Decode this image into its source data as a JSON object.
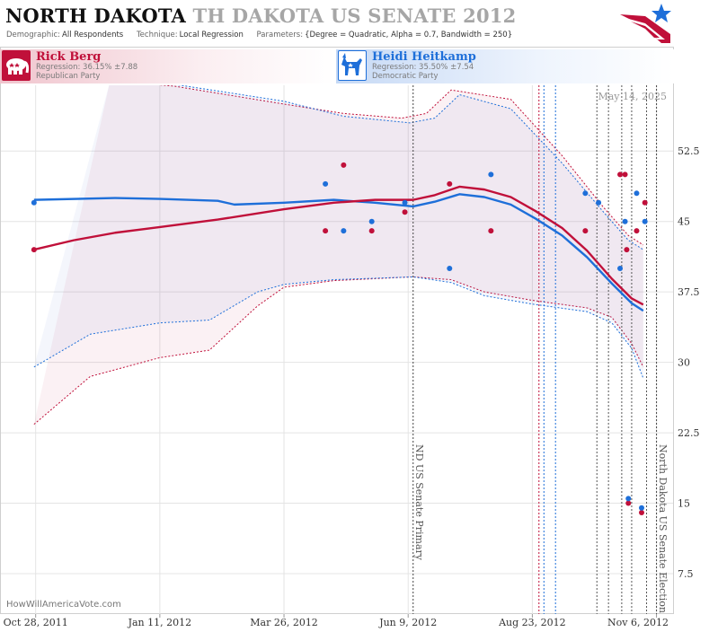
{
  "header": {
    "state": "NORTH DAKOTA",
    "state_faded": "TH DAKOTA",
    "race": "US SENATE 2012",
    "demographic_label": "Demographic:",
    "demographic_value": "All Respondents",
    "technique_label": "Technique:",
    "technique_value": "Local Regression",
    "parameters_label": "Parameters:",
    "parameters_value": "{Degree = Quadratic, Alpha = 0.7, Bandwidth = 250}"
  },
  "candidates": [
    {
      "name": "Rick Berg",
      "regression": "Regression: 36.15% ±7.88",
      "party": "Republican Party",
      "color": "#c0103a",
      "icon": "elephant-icon"
    },
    {
      "name": "Heidi Heitkamp",
      "regression": "Regression: 35.50% ±7.54",
      "party": "Democratic Party",
      "color": "#1e6fd9",
      "icon": "donkey-icon"
    }
  ],
  "watermark": "HowWillAmericaVote.com",
  "chart_data": {
    "type": "scatter",
    "date_label": "May 14, 2025",
    "x_ticks": [
      {
        "label": "Oct 28, 2011",
        "date": "2011-10-28"
      },
      {
        "label": "Jan 11, 2012",
        "date": "2012-01-11"
      },
      {
        "label": "Mar 26, 2012",
        "date": "2012-03-26"
      },
      {
        "label": "Jun 9, 2012",
        "date": "2012-06-09"
      },
      {
        "label": "Aug 23, 2012",
        "date": "2012-08-23"
      },
      {
        "label": "Nov 6, 2012",
        "date": "2012-11-06"
      }
    ],
    "x_range": [
      "2011-10-07",
      "2012-11-16"
    ],
    "y_ticks": [
      "7.5",
      "15",
      "22.5",
      "30",
      "37.5",
      "45",
      "52.5"
    ],
    "ylim": [
      3.2,
      59.5
    ],
    "annotations": [
      {
        "label": "ND US Senate Primary",
        "date": "2012-06-12"
      },
      {
        "label": "North Dakota US Senate Election",
        "date": "2012-11-06"
      }
    ],
    "event_lines": [
      {
        "date": "2012-08-27",
        "color": "#c0103a"
      },
      {
        "date": "2012-08-30",
        "color": "#1e6fd9"
      },
      {
        "date": "2012-09-06",
        "color": "#1e6fd9"
      },
      {
        "date": "2012-10-01",
        "color": "#555555"
      },
      {
        "date": "2012-10-08",
        "color": "#555555"
      },
      {
        "date": "2012-10-16",
        "color": "#555555"
      },
      {
        "date": "2012-10-22",
        "color": "#555555"
      },
      {
        "date": "2012-10-31",
        "color": "#555555"
      }
    ],
    "series": [
      {
        "name": "Rick Berg",
        "color": "#c0103a",
        "points": [
          {
            "date": "2011-10-27",
            "y": 42
          },
          {
            "date": "2012-04-20",
            "y": 44
          },
          {
            "date": "2012-05-01",
            "y": 51
          },
          {
            "date": "2012-05-18",
            "y": 44
          },
          {
            "date": "2012-06-07",
            "y": 46
          },
          {
            "date": "2012-07-04",
            "y": 49
          },
          {
            "date": "2012-07-29",
            "y": 44
          },
          {
            "date": "2012-09-24",
            "y": 44
          },
          {
            "date": "2012-10-15",
            "y": 50
          },
          {
            "date": "2012-10-18",
            "y": 50
          },
          {
            "date": "2012-10-19",
            "y": 42
          },
          {
            "date": "2012-10-25",
            "y": 44
          },
          {
            "date": "2012-10-30",
            "y": 47
          },
          {
            "date": "2012-10-20",
            "y": 15
          },
          {
            "date": "2012-10-28",
            "y": 14
          }
        ],
        "fit": [
          {
            "date": "2011-10-27",
            "y": 42
          },
          {
            "date": "2011-11-20",
            "y": 43
          },
          {
            "date": "2011-12-15",
            "y": 43.8
          },
          {
            "date": "2012-01-11",
            "y": 44.4
          },
          {
            "date": "2012-02-15",
            "y": 45.2
          },
          {
            "date": "2012-03-26",
            "y": 46.3
          },
          {
            "date": "2012-04-25",
            "y": 47
          },
          {
            "date": "2012-05-20",
            "y": 47.3
          },
          {
            "date": "2012-06-12",
            "y": 47.3
          },
          {
            "date": "2012-06-25",
            "y": 47.8
          },
          {
            "date": "2012-07-10",
            "y": 48.7
          },
          {
            "date": "2012-07-25",
            "y": 48.4
          },
          {
            "date": "2012-08-10",
            "y": 47.6
          },
          {
            "date": "2012-08-25",
            "y": 46.1
          },
          {
            "date": "2012-09-10",
            "y": 44.3
          },
          {
            "date": "2012-09-25",
            "y": 41.9
          },
          {
            "date": "2012-10-10",
            "y": 38.9
          },
          {
            "date": "2012-10-22",
            "y": 36.8
          },
          {
            "date": "2012-10-29",
            "y": 36.15
          }
        ],
        "band_upper": [
          {
            "date": "2011-12-12",
            "y": 60
          },
          {
            "date": "2012-01-20",
            "y": 59.4
          },
          {
            "date": "2012-03-26",
            "y": 57.5
          },
          {
            "date": "2012-05-01",
            "y": 56.5
          },
          {
            "date": "2012-06-05",
            "y": 56
          },
          {
            "date": "2012-06-20",
            "y": 56.5
          },
          {
            "date": "2012-07-05",
            "y": 59
          },
          {
            "date": "2012-08-10",
            "y": 58
          },
          {
            "date": "2012-09-10",
            "y": 52
          },
          {
            "date": "2012-10-05",
            "y": 46.5
          },
          {
            "date": "2012-10-20",
            "y": 43.5
          },
          {
            "date": "2012-10-29",
            "y": 42.5
          }
        ],
        "band_lower": [
          {
            "date": "2011-10-27",
            "y": 23.4
          },
          {
            "date": "2011-11-30",
            "y": 28.5
          },
          {
            "date": "2012-01-11",
            "y": 30.5
          },
          {
            "date": "2012-02-10",
            "y": 31.3
          },
          {
            "date": "2012-03-10",
            "y": 36
          },
          {
            "date": "2012-03-26",
            "y": 38
          },
          {
            "date": "2012-04-25",
            "y": 38.7
          },
          {
            "date": "2012-06-12",
            "y": 39.1
          },
          {
            "date": "2012-07-05",
            "y": 38.8
          },
          {
            "date": "2012-07-25",
            "y": 37.5
          },
          {
            "date": "2012-08-23",
            "y": 36.6
          },
          {
            "date": "2012-09-25",
            "y": 35.8
          },
          {
            "date": "2012-10-10",
            "y": 34.8
          },
          {
            "date": "2012-10-22",
            "y": 32
          },
          {
            "date": "2012-10-29",
            "y": 29.5
          }
        ]
      },
      {
        "name": "Heidi Heitkamp",
        "color": "#1e6fd9",
        "points": [
          {
            "date": "2011-10-27",
            "y": 47
          },
          {
            "date": "2012-04-20",
            "y": 49
          },
          {
            "date": "2012-05-01",
            "y": 44
          },
          {
            "date": "2012-05-18",
            "y": 45
          },
          {
            "date": "2012-06-07",
            "y": 47
          },
          {
            "date": "2012-07-04",
            "y": 40
          },
          {
            "date": "2012-07-29",
            "y": 50
          },
          {
            "date": "2012-09-24",
            "y": 48
          },
          {
            "date": "2012-10-02",
            "y": 47
          },
          {
            "date": "2012-10-15",
            "y": 40
          },
          {
            "date": "2012-10-18",
            "y": 45
          },
          {
            "date": "2012-10-25",
            "y": 48
          },
          {
            "date": "2012-10-30",
            "y": 45
          },
          {
            "date": "2012-10-20",
            "y": 15.5
          },
          {
            "date": "2012-10-28",
            "y": 14.5
          }
        ],
        "fit": [
          {
            "date": "2011-10-27",
            "y": 47.3
          },
          {
            "date": "2011-12-15",
            "y": 47.5
          },
          {
            "date": "2012-01-11",
            "y": 47.4
          },
          {
            "date": "2012-02-15",
            "y": 47.2
          },
          {
            "date": "2012-02-25",
            "y": 46.8
          },
          {
            "date": "2012-03-26",
            "y": 47
          },
          {
            "date": "2012-04-25",
            "y": 47.3
          },
          {
            "date": "2012-05-20",
            "y": 47
          },
          {
            "date": "2012-06-12",
            "y": 46.6
          },
          {
            "date": "2012-06-25",
            "y": 47.1
          },
          {
            "date": "2012-07-10",
            "y": 47.9
          },
          {
            "date": "2012-07-25",
            "y": 47.6
          },
          {
            "date": "2012-08-10",
            "y": 46.8
          },
          {
            "date": "2012-08-25",
            "y": 45.3
          },
          {
            "date": "2012-09-10",
            "y": 43.5
          },
          {
            "date": "2012-09-25",
            "y": 41.2
          },
          {
            "date": "2012-10-10",
            "y": 38.4
          },
          {
            "date": "2012-10-22",
            "y": 36.3
          },
          {
            "date": "2012-10-29",
            "y": 35.5
          }
        ],
        "band_upper": [
          {
            "date": "2011-12-12",
            "y": 60
          },
          {
            "date": "2012-01-20",
            "y": 59.6
          },
          {
            "date": "2012-03-26",
            "y": 57.8
          },
          {
            "date": "2012-05-01",
            "y": 56.2
          },
          {
            "date": "2012-06-10",
            "y": 55.5
          },
          {
            "date": "2012-06-25",
            "y": 56
          },
          {
            "date": "2012-07-10",
            "y": 58.5
          },
          {
            "date": "2012-08-10",
            "y": 57
          },
          {
            "date": "2012-09-10",
            "y": 51.2
          },
          {
            "date": "2012-10-05",
            "y": 46
          },
          {
            "date": "2012-10-20",
            "y": 43
          },
          {
            "date": "2012-10-29",
            "y": 42
          }
        ],
        "band_lower": [
          {
            "date": "2011-10-27",
            "y": 29.5
          },
          {
            "date": "2011-11-30",
            "y": 33
          },
          {
            "date": "2012-01-11",
            "y": 34.2
          },
          {
            "date": "2012-02-10",
            "y": 34.5
          },
          {
            "date": "2012-03-10",
            "y": 37.5
          },
          {
            "date": "2012-03-26",
            "y": 38.3
          },
          {
            "date": "2012-04-25",
            "y": 38.8
          },
          {
            "date": "2012-06-12",
            "y": 39.1
          },
          {
            "date": "2012-07-05",
            "y": 38.5
          },
          {
            "date": "2012-07-25",
            "y": 37.1
          },
          {
            "date": "2012-08-23",
            "y": 36.2
          },
          {
            "date": "2012-09-25",
            "y": 35.4
          },
          {
            "date": "2012-10-10",
            "y": 34.2
          },
          {
            "date": "2012-10-22",
            "y": 31.5
          },
          {
            "date": "2012-10-29",
            "y": 28.3
          }
        ]
      }
    ]
  }
}
